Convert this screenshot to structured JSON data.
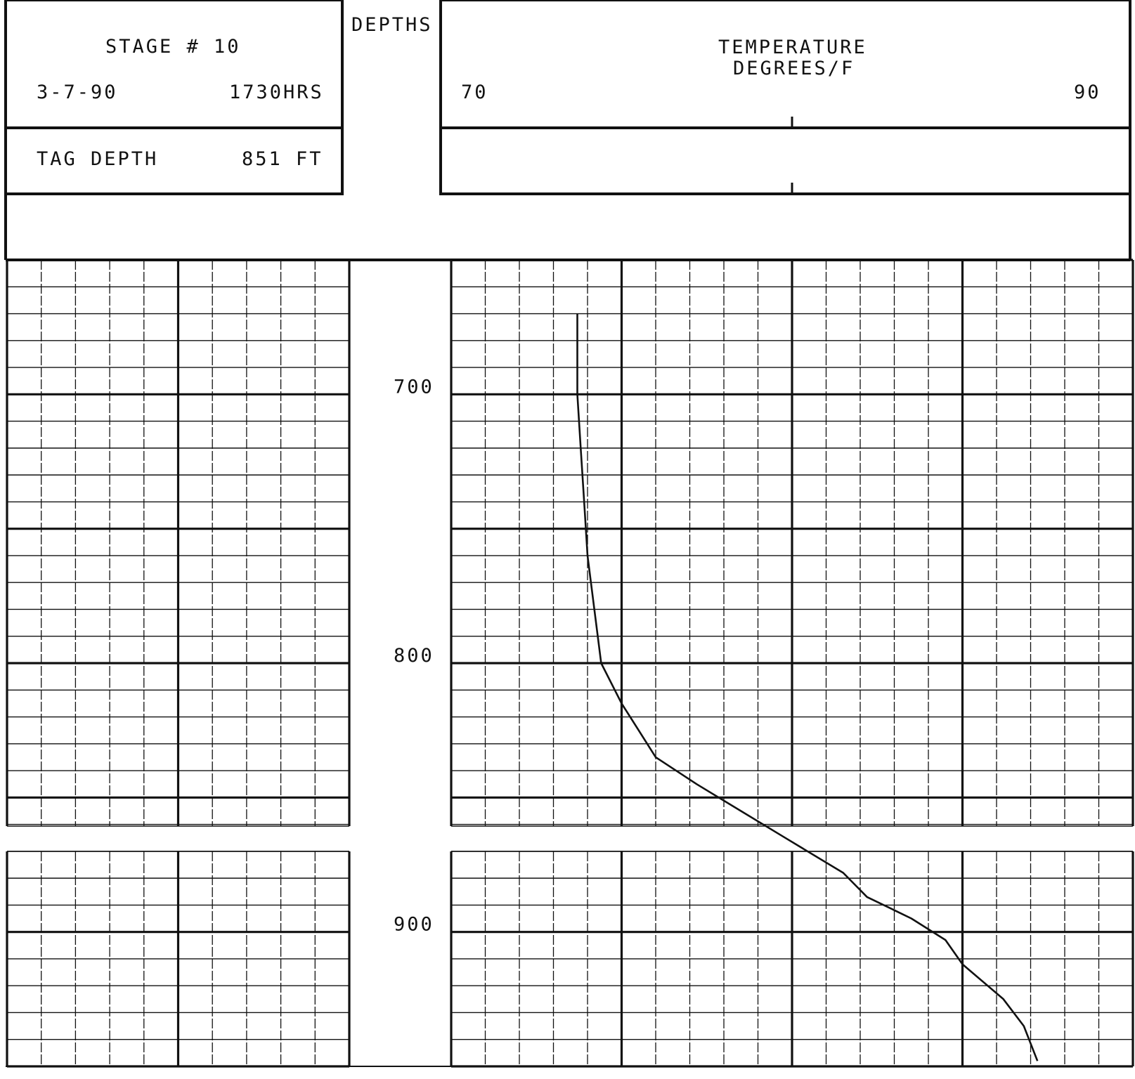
{
  "header": {
    "stage": "STAGE # 10",
    "date": "3-7-90",
    "time": "1730HRS",
    "tag_depth_label": "TAG DEPTH",
    "tag_depth_value": "851 FT",
    "depths_title": "DEPTHS",
    "temperature_title_line1": "TEMPERATURE",
    "temperature_title_line2": "DEGREES/F",
    "scale_left": "70",
    "scale_right": "90"
  },
  "chart_data": {
    "type": "line",
    "title": "",
    "xlabel": "TEMPERATURE DEGREES/F",
    "ylabel": "DEPTHS",
    "xlim": [
      70,
      90
    ],
    "ylim": [
      650,
      950
    ],
    "y_inverted": true,
    "depth_tick_labels": [
      "700",
      "800",
      "900"
    ],
    "grid": true,
    "series": [
      {
        "x": [
          73.7,
          73.7,
          73.8,
          73.9,
          74.0,
          74.2,
          74.4,
          74.8,
          75.0,
          75.5,
          76.0,
          77.2,
          78.5,
          79.8,
          81.5,
          82.2,
          83.5,
          84.5,
          85.0,
          86.2,
          86.8,
          87.2
        ],
        "y": [
          670,
          700,
          720,
          740,
          760,
          780,
          800,
          810,
          815,
          825,
          835,
          845,
          855,
          865,
          878,
          887,
          895,
          903,
          912,
          925,
          935,
          948
        ]
      }
    ]
  }
}
